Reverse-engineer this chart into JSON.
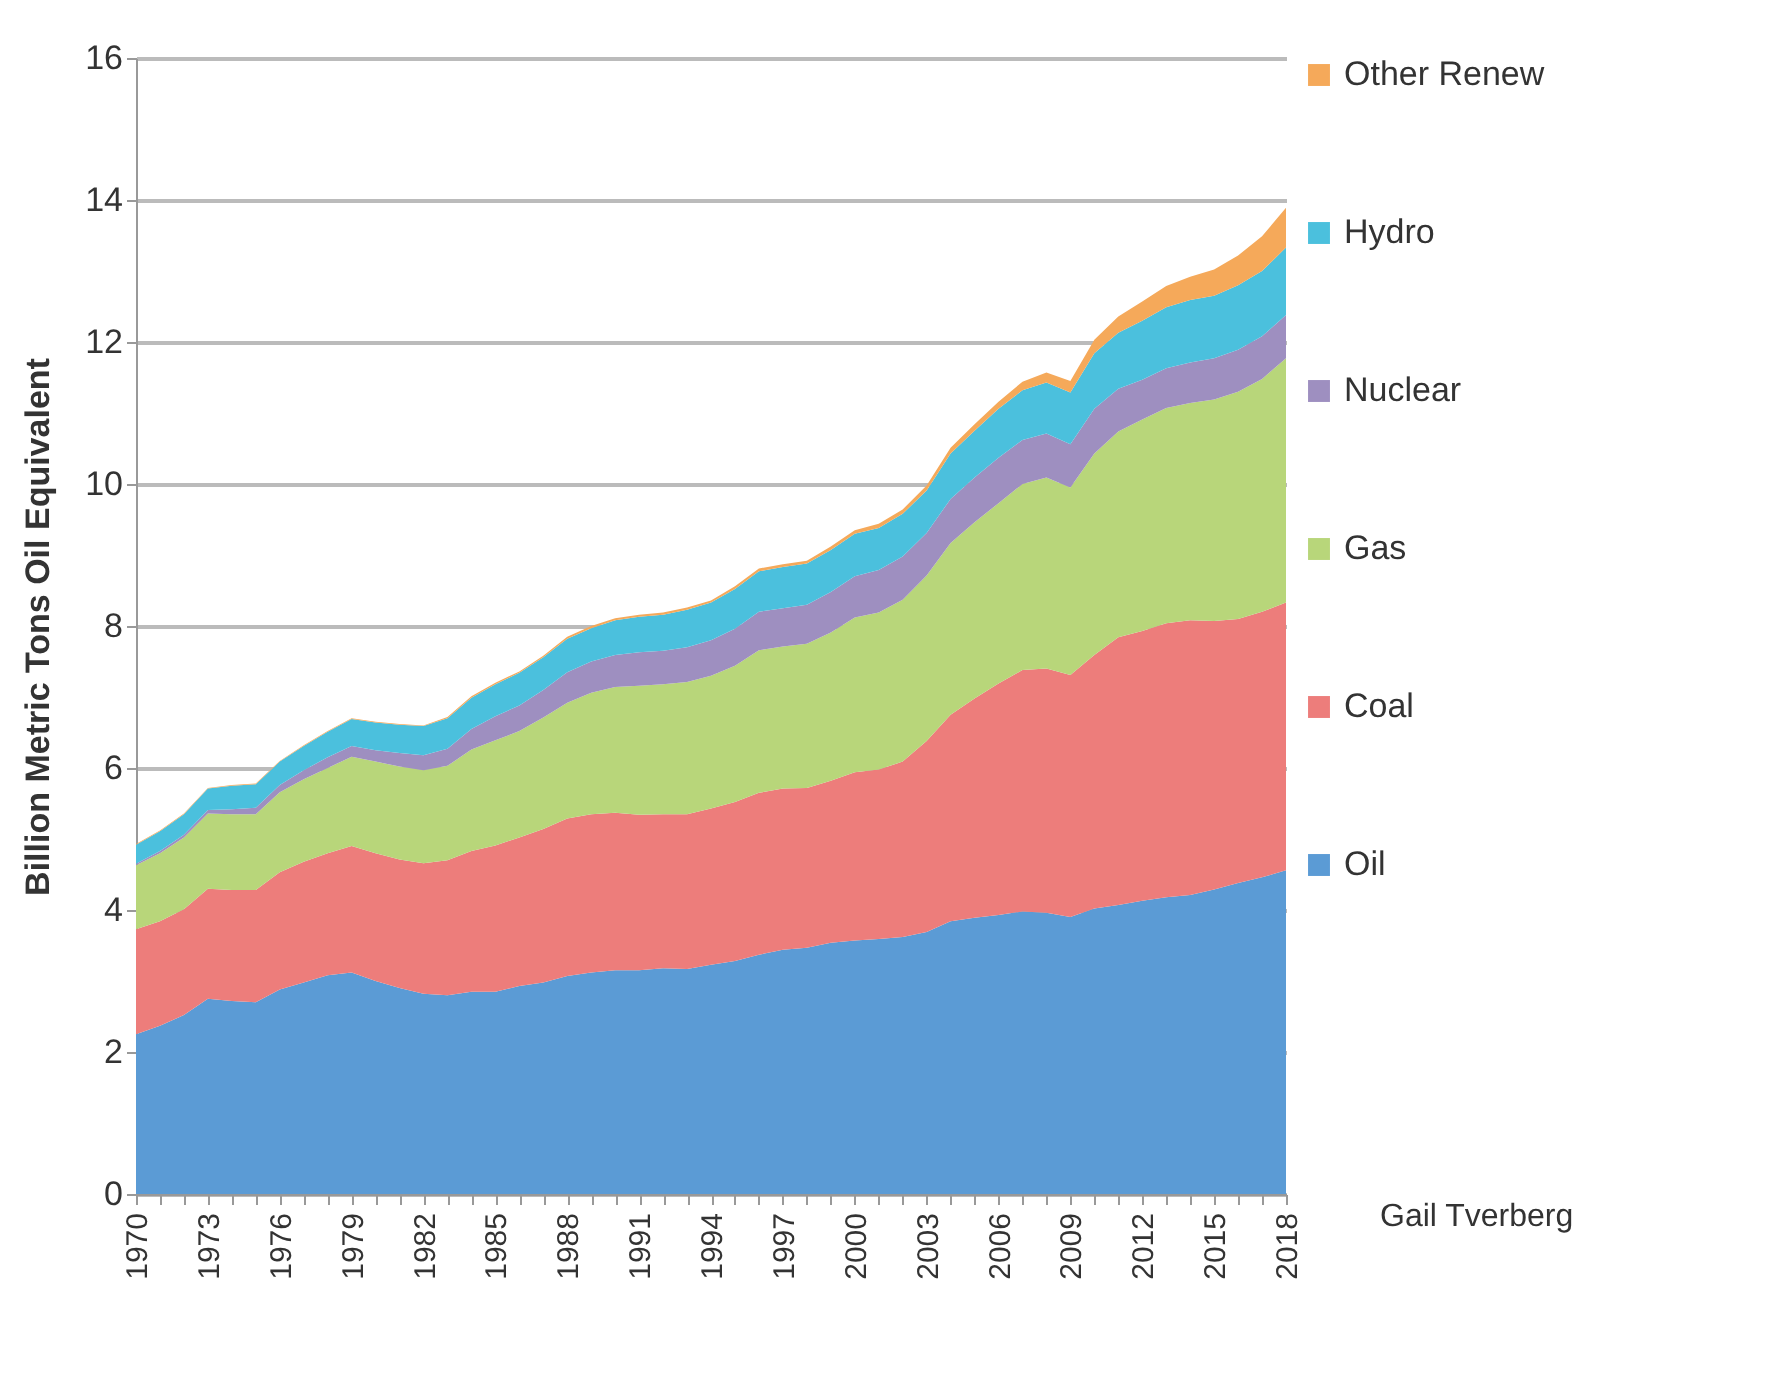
{
  "chart_data": {
    "type": "area",
    "stacked": true,
    "ylabel": "Billion Metric Tons Oil Equivalent",
    "ylim": [
      0,
      16
    ],
    "yticks": [
      0,
      2,
      4,
      6,
      8,
      10,
      12,
      14,
      16
    ],
    "grid": "y",
    "legend": "right",
    "annotations": [
      "Gail Tverberg"
    ],
    "categories": [
      "1970",
      null,
      null,
      "1973",
      null,
      null,
      "1976",
      null,
      null,
      "1979",
      null,
      null,
      "1982",
      null,
      null,
      "1985",
      null,
      null,
      "1988",
      null,
      null,
      "1991",
      null,
      null,
      "1994",
      null,
      null,
      "1997",
      null,
      null,
      "2000",
      null,
      null,
      "2003",
      null,
      null,
      "2006",
      null,
      null,
      "2009",
      null,
      null,
      "2012",
      null,
      null,
      "2015",
      null,
      null,
      "2018"
    ],
    "series": [
      {
        "name": "Oil",
        "color": "#5b9bd5",
        "values": [
          2.25,
          2.37,
          2.52,
          2.75,
          2.72,
          2.7,
          2.88,
          2.98,
          3.08,
          3.12,
          3.0,
          2.9,
          2.82,
          2.8,
          2.85,
          2.85,
          2.93,
          2.98,
          3.07,
          3.12,
          3.15,
          3.15,
          3.18,
          3.17,
          3.23,
          3.28,
          3.37,
          3.44,
          3.47,
          3.54,
          3.57,
          3.59,
          3.62,
          3.69,
          3.84,
          3.89,
          3.93,
          3.98,
          3.96,
          3.9,
          4.02,
          4.07,
          4.13,
          4.18,
          4.21,
          4.29,
          4.38,
          4.46,
          4.56
        ]
      },
      {
        "name": "Coal",
        "color": "#ed7d7b",
        "values": [
          1.48,
          1.47,
          1.49,
          1.55,
          1.56,
          1.58,
          1.65,
          1.7,
          1.72,
          1.78,
          1.8,
          1.81,
          1.84,
          1.9,
          1.98,
          2.06,
          2.09,
          2.16,
          2.22,
          2.23,
          2.22,
          2.19,
          2.17,
          2.18,
          2.2,
          2.24,
          2.28,
          2.27,
          2.25,
          2.28,
          2.37,
          2.39,
          2.47,
          2.69,
          2.91,
          3.09,
          3.26,
          3.4,
          3.44,
          3.41,
          3.57,
          3.77,
          3.8,
          3.86,
          3.87,
          3.78,
          3.72,
          3.74,
          3.77
        ]
      },
      {
        "name": "Gas",
        "color": "#b8d67a",
        "values": [
          0.9,
          0.96,
          1.01,
          1.06,
          1.07,
          1.07,
          1.13,
          1.16,
          1.2,
          1.26,
          1.29,
          1.31,
          1.31,
          1.33,
          1.43,
          1.48,
          1.5,
          1.57,
          1.63,
          1.71,
          1.77,
          1.82,
          1.83,
          1.86,
          1.87,
          1.92,
          2.01,
          2.0,
          2.03,
          2.09,
          2.18,
          2.21,
          2.28,
          2.33,
          2.42,
          2.48,
          2.54,
          2.62,
          2.69,
          2.64,
          2.84,
          2.9,
          2.98,
          3.03,
          3.06,
          3.12,
          3.2,
          3.28,
          3.44
        ]
      },
      {
        "name": "Nuclear",
        "color": "#9e8fc0",
        "values": [
          0.02,
          0.03,
          0.04,
          0.05,
          0.07,
          0.09,
          0.1,
          0.13,
          0.15,
          0.15,
          0.16,
          0.19,
          0.21,
          0.24,
          0.29,
          0.34,
          0.36,
          0.39,
          0.43,
          0.44,
          0.45,
          0.47,
          0.47,
          0.49,
          0.5,
          0.52,
          0.54,
          0.54,
          0.55,
          0.57,
          0.58,
          0.6,
          0.61,
          0.6,
          0.62,
          0.63,
          0.64,
          0.62,
          0.62,
          0.61,
          0.63,
          0.6,
          0.56,
          0.56,
          0.57,
          0.58,
          0.59,
          0.6,
          0.61
        ]
      },
      {
        "name": "Hydro",
        "color": "#4bc0dd",
        "values": [
          0.27,
          0.28,
          0.29,
          0.3,
          0.33,
          0.33,
          0.33,
          0.34,
          0.36,
          0.38,
          0.39,
          0.4,
          0.41,
          0.43,
          0.44,
          0.45,
          0.46,
          0.46,
          0.47,
          0.47,
          0.49,
          0.5,
          0.51,
          0.53,
          0.53,
          0.56,
          0.57,
          0.58,
          0.58,
          0.59,
          0.6,
          0.59,
          0.6,
          0.6,
          0.64,
          0.66,
          0.69,
          0.7,
          0.72,
          0.73,
          0.78,
          0.79,
          0.83,
          0.86,
          0.88,
          0.88,
          0.91,
          0.92,
          0.95
        ]
      },
      {
        "name": "Other Renew",
        "color": "#f5a95a",
        "values": [
          0.01,
          0.01,
          0.01,
          0.01,
          0.01,
          0.01,
          0.01,
          0.01,
          0.01,
          0.01,
          0.01,
          0.01,
          0.01,
          0.02,
          0.02,
          0.02,
          0.02,
          0.02,
          0.03,
          0.03,
          0.03,
          0.03,
          0.03,
          0.03,
          0.03,
          0.04,
          0.04,
          0.04,
          0.04,
          0.05,
          0.05,
          0.06,
          0.06,
          0.07,
          0.08,
          0.09,
          0.1,
          0.12,
          0.14,
          0.16,
          0.19,
          0.23,
          0.27,
          0.3,
          0.33,
          0.37,
          0.42,
          0.49,
          0.56
        ]
      }
    ]
  }
}
